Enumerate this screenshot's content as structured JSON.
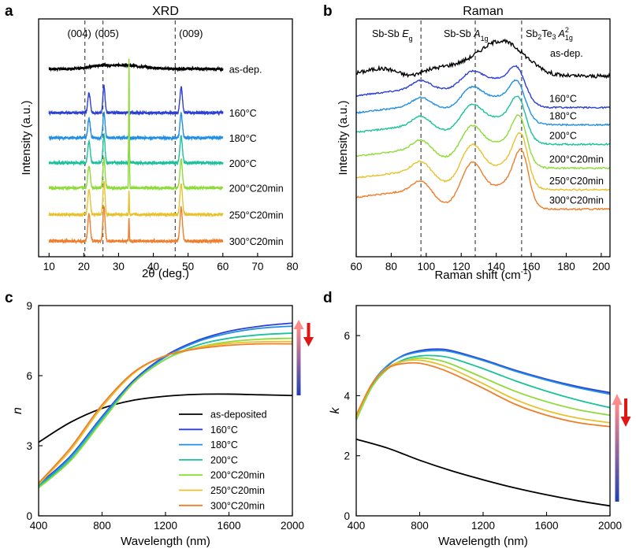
{
  "panel_letters": [
    "a",
    "b",
    "c",
    "d"
  ],
  "colors": {
    "as_dep": "#000000",
    "t160": "#2b3fd6",
    "t180": "#1f8fe6",
    "t200": "#19c29a",
    "t200_20": "#8edb3a",
    "t250_20": "#e8c22e",
    "t300_20": "#ef7d2a",
    "guide": "#555555",
    "arrow_up_top": "#ff8a8a",
    "arrow_up_bottom": "#2040b0",
    "arrow_down": "#e01515"
  },
  "chart_data": [
    {
      "id": "a",
      "type": "line",
      "title": "XRD",
      "xlabel": "2θ (deg.)",
      "ylabel": "Intensity (a.u.)",
      "xlim": [
        7,
        80
      ],
      "xticks": [
        10,
        20,
        30,
        40,
        50,
        60,
        70,
        80
      ],
      "xticklabels": [
        "10",
        "20",
        "30",
        "40",
        "50",
        "60",
        "70",
        "80"
      ],
      "yticks": "none",
      "data_range": [
        10,
        60
      ],
      "guides": [
        20.3,
        25.5,
        46.3
      ],
      "annotations": [
        "(004)",
        "(005)",
        "(009)"
      ],
      "peaks": [
        {
          "center": 21.5,
          "width": 0.35,
          "rel": 0.75
        },
        {
          "center": 25.8,
          "width": 0.3,
          "rel": 1.0
        },
        {
          "center": 48.0,
          "width": 0.35,
          "rel": 0.95
        }
      ],
      "series": [
        {
          "name": "as-dep.",
          "label": "as-dep.",
          "color_key": "as_dep",
          "offset": 6.0,
          "peak_scale": 0.0,
          "broad": 0.12,
          "sharp_33": 0
        },
        {
          "name": "160°C",
          "label": "160°C",
          "color_key": "t160",
          "offset": 4.6,
          "peak_scale": 0.9,
          "broad": 0,
          "sharp_33": 0
        },
        {
          "name": "180°C",
          "label": "180°C",
          "color_key": "t180",
          "offset": 3.8,
          "peak_scale": 0.85,
          "broad": 0,
          "sharp_33": 0
        },
        {
          "name": "200°C",
          "label": "200°C",
          "color_key": "t200",
          "offset": 3.0,
          "peak_scale": 0.95,
          "broad": 0,
          "sharp_33": 0.9
        },
        {
          "name": "200°C20min",
          "label": "200°C20min",
          "color_key": "t200_20",
          "offset": 2.2,
          "peak_scale": 1.0,
          "broad": 0,
          "sharp_33": 4.1
        },
        {
          "name": "250°C20min",
          "label": "250°C20min",
          "color_key": "t250_20",
          "offset": 1.35,
          "peak_scale": 1.1,
          "broad": 0,
          "sharp_33": 0.35
        },
        {
          "name": "300°C20min",
          "label": "300°C20min",
          "color_key": "t300_20",
          "offset": 0.5,
          "peak_scale": 1.2,
          "broad": 0,
          "sharp_33": 0.25
        }
      ],
      "ylim": [
        0,
        7.6
      ]
    },
    {
      "id": "b",
      "type": "line",
      "title": "Raman",
      "xlabel": "Raman shift (cm",
      "xlabel_sup": "-1",
      "xlabel_end": ")",
      "ylabel": "Intensity (a.u.)",
      "xlim": [
        60,
        205
      ],
      "xticks": [
        60,
        80,
        100,
        120,
        140,
        160,
        180,
        200
      ],
      "xticklabels": [
        "60",
        "80",
        "100",
        "120",
        "140",
        "160",
        "180",
        "200"
      ],
      "yticks": "none",
      "guides": [
        97,
        128,
        154.5
      ],
      "annotations": [
        {
          "main": "Sb-Sb ",
          "ital": "E",
          "sub": "g",
          "sup": ""
        },
        {
          "main": "Sb-Sb ",
          "ital": "A",
          "sub": "1g",
          "sup": ""
        },
        {
          "main": "Sb",
          "sub2": "2",
          "main2": "Te",
          "sub3": "3",
          "ital": " A",
          "sub": "1g",
          "sup": "2"
        }
      ],
      "series": [
        {
          "name": "as-dep.",
          "label": "as-dep.",
          "color_key": "as_dep",
          "offset": 8.4,
          "shape": "amorph"
        },
        {
          "name": "160°C",
          "label": "160°C",
          "color_key": "t160",
          "offset": 6.9,
          "shape": "cryst",
          "sharp": 0.0
        },
        {
          "name": "180°C",
          "label": "180°C",
          "color_key": "t180",
          "offset": 6.1,
          "shape": "cryst",
          "sharp": 0.15
        },
        {
          "name": "200°C",
          "label": "200°C",
          "color_key": "t200",
          "offset": 5.2,
          "shape": "cryst",
          "sharp": 0.35
        },
        {
          "name": "200°C20min",
          "label": "200°C20min",
          "color_key": "t200_20",
          "offset": 4.1,
          "shape": "cryst",
          "sharp": 0.6
        },
        {
          "name": "250°C20min",
          "label": "250°C20min",
          "color_key": "t250_20",
          "offset": 3.1,
          "shape": "cryst",
          "sharp": 0.85
        },
        {
          "name": "300°C20min",
          "label": "300°C20min",
          "color_key": "t300_20",
          "offset": 2.2,
          "shape": "cryst",
          "sharp": 1.0
        }
      ],
      "ylim": [
        0,
        11
      ]
    },
    {
      "id": "c",
      "type": "line",
      "xlabel": "Wavelength (nm)",
      "ylabel": "n",
      "xlim": [
        400,
        2000
      ],
      "ylim": [
        0,
        9
      ],
      "xticks": [
        400,
        800,
        1200,
        1600,
        2000
      ],
      "xticklabels": [
        "400",
        "800",
        "1200",
        "1600",
        "2000"
      ],
      "yticks": [
        0,
        3,
        6,
        9
      ],
      "yticklabels": [
        "0",
        "3",
        "6",
        "9"
      ],
      "series": [
        {
          "name": "as-deposited",
          "color_key": "as_dep",
          "x": [
            400,
            600,
            800,
            1000,
            1200,
            1400,
            1600,
            1800,
            2000
          ],
          "y": [
            3.15,
            4.0,
            4.6,
            4.95,
            5.12,
            5.2,
            5.21,
            5.18,
            5.15
          ]
        },
        {
          "name": "160°C",
          "color_key": "t160",
          "x": [
            400,
            600,
            800,
            1000,
            1200,
            1400,
            1600,
            1800,
            2000
          ],
          "y": [
            1.35,
            2.55,
            4.25,
            5.8,
            6.85,
            7.5,
            7.9,
            8.12,
            8.25
          ]
        },
        {
          "name": "180°C",
          "color_key": "t180",
          "x": [
            400,
            600,
            800,
            1000,
            1200,
            1400,
            1600,
            1800,
            2000
          ],
          "y": [
            1.3,
            2.5,
            4.2,
            5.75,
            6.8,
            7.45,
            7.82,
            8.03,
            8.12
          ]
        },
        {
          "name": "200°C",
          "color_key": "t200",
          "x": [
            400,
            600,
            800,
            1000,
            1200,
            1400,
            1600,
            1800,
            2000
          ],
          "y": [
            1.25,
            2.4,
            4.1,
            5.7,
            6.7,
            7.3,
            7.6,
            7.75,
            7.82
          ]
        },
        {
          "name": "200°C20min",
          "color_key": "t200_20",
          "x": [
            400,
            600,
            800,
            1000,
            1200,
            1400,
            1600,
            1800,
            2000
          ],
          "y": [
            1.2,
            2.35,
            4.05,
            5.7,
            6.7,
            7.2,
            7.45,
            7.56,
            7.6
          ]
        },
        {
          "name": "250°C20min",
          "color_key": "t250_20",
          "x": [
            400,
            600,
            800,
            1000,
            1200,
            1400,
            1600,
            1800,
            2000
          ],
          "y": [
            1.35,
            2.8,
            4.65,
            6.1,
            6.85,
            7.2,
            7.38,
            7.45,
            7.46
          ]
        },
        {
          "name": "300°C20min",
          "color_key": "t300_20",
          "x": [
            400,
            600,
            800,
            1000,
            1200,
            1400,
            1600,
            1800,
            2000
          ],
          "y": [
            1.4,
            2.9,
            4.75,
            6.15,
            6.85,
            7.15,
            7.3,
            7.36,
            7.36
          ]
        }
      ],
      "legend": [
        "as-deposited",
        "160°C",
        "180°C",
        "200°C",
        "200°C20min",
        "250°C20min",
        "300°C20min"
      ],
      "legend_location": "lower-right"
    },
    {
      "id": "d",
      "type": "line",
      "xlabel": "Wavelength (nm)",
      "ylabel": "k",
      "xlim": [
        400,
        2000
      ],
      "ylim": [
        0,
        7
      ],
      "xticks": [
        400,
        800,
        1200,
        1600,
        2000
      ],
      "xticklabels": [
        "400",
        "800",
        "1200",
        "1600",
        "2000"
      ],
      "yticks": [
        0,
        2,
        4,
        6
      ],
      "yticklabels": [
        "0",
        "2",
        "4",
        "6"
      ],
      "series": [
        {
          "name": "as-deposited",
          "color_key": "as_dep",
          "x": [
            400,
            600,
            800,
            1000,
            1200,
            1400,
            1600,
            1800,
            2000
          ],
          "y": [
            2.55,
            2.25,
            1.85,
            1.5,
            1.2,
            0.93,
            0.7,
            0.5,
            0.33
          ]
        },
        {
          "name": "160°C",
          "color_key": "t160",
          "x": [
            400,
            500,
            600,
            700,
            800,
            900,
            1000,
            1200,
            1400,
            1600,
            1800,
            2000
          ],
          "y": [
            3.2,
            4.35,
            5.0,
            5.35,
            5.5,
            5.55,
            5.5,
            5.2,
            4.85,
            4.55,
            4.3,
            4.1
          ]
        },
        {
          "name": "180°C",
          "color_key": "t180",
          "x": [
            400,
            500,
            600,
            700,
            800,
            900,
            1000,
            1200,
            1400,
            1600,
            1800,
            2000
          ],
          "y": [
            3.25,
            4.4,
            5.02,
            5.33,
            5.46,
            5.5,
            5.46,
            5.17,
            4.82,
            4.52,
            4.26,
            4.05
          ]
        },
        {
          "name": "200°C",
          "color_key": "t200",
          "x": [
            400,
            500,
            600,
            700,
            800,
            900,
            1000,
            1200,
            1400,
            1600,
            1800,
            2000
          ],
          "y": [
            3.2,
            4.3,
            4.9,
            5.2,
            5.32,
            5.33,
            5.25,
            4.9,
            4.5,
            4.15,
            3.85,
            3.6
          ]
        },
        {
          "name": "200°C20min",
          "color_key": "t200_20",
          "x": [
            400,
            500,
            600,
            700,
            800,
            900,
            1000,
            1200,
            1400,
            1600,
            1800,
            2000
          ],
          "y": [
            3.2,
            4.3,
            4.9,
            5.15,
            5.25,
            5.2,
            5.05,
            4.6,
            4.15,
            3.8,
            3.53,
            3.35
          ]
        },
        {
          "name": "250°C20min",
          "color_key": "t250_20",
          "x": [
            400,
            500,
            600,
            700,
            800,
            900,
            1000,
            1200,
            1400,
            1600,
            1800,
            2000
          ],
          "y": [
            3.3,
            4.4,
            4.95,
            5.15,
            5.18,
            5.08,
            4.9,
            4.4,
            3.88,
            3.5,
            3.25,
            3.1
          ]
        },
        {
          "name": "300°C20min",
          "color_key": "t300_20",
          "x": [
            400,
            500,
            600,
            700,
            800,
            900,
            1000,
            1200,
            1400,
            1600,
            1800,
            2000
          ],
          "y": [
            3.35,
            4.4,
            4.92,
            5.07,
            5.08,
            4.95,
            4.75,
            4.25,
            3.72,
            3.35,
            3.1,
            2.97
          ]
        }
      ]
    }
  ]
}
